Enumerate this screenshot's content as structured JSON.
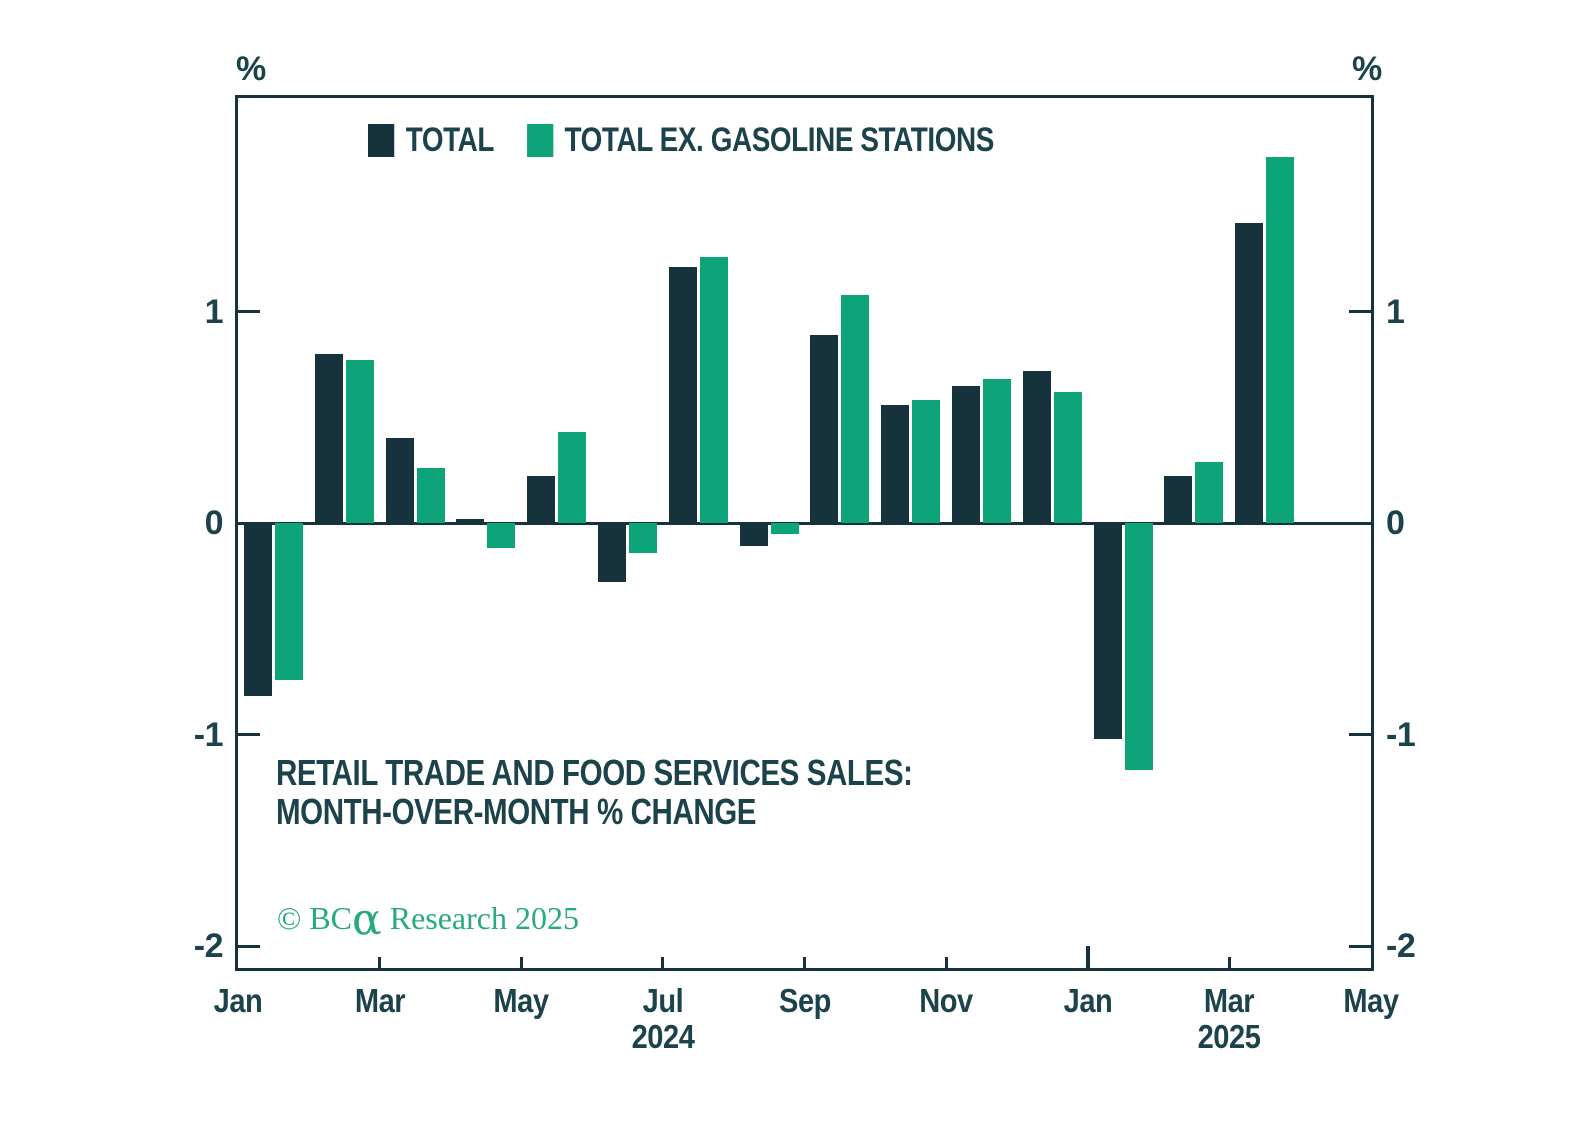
{
  "theme": {
    "background": "#FFFFFF",
    "text_color": "#1C434B",
    "axis_color": "#16323C",
    "copyright_color": "#29AA7C"
  },
  "chart_data": {
    "type": "bar",
    "title": "RETAIL TRADE AND FOOD SERVICES SALES: MONTH-OVER-MONTH % CHANGE",
    "title_lines": [
      "RETAIL TRADE AND FOOD SERVICES SALES:",
      "MONTH-OVER-MONTH % CHANGE"
    ],
    "unit_left": "%",
    "unit_right": "%",
    "grid": false,
    "legend_position": "top",
    "categories": [
      "Jan 2024",
      "Feb 2024",
      "Mar 2024",
      "Apr 2024",
      "May 2024",
      "Jun 2024",
      "Jul 2024",
      "Aug 2024",
      "Sep 2024",
      "Oct 2024",
      "Nov 2024",
      "Dec 2024",
      "Jan 2025",
      "Feb 2025",
      "Mar 2025"
    ],
    "series": [
      {
        "name": "TOTAL",
        "color": "#16323C",
        "values": [
          -0.82,
          0.8,
          0.4,
          0.02,
          0.22,
          -0.28,
          1.21,
          -0.11,
          0.89,
          0.56,
          0.65,
          0.72,
          -1.02,
          0.22,
          1.42
        ]
      },
      {
        "name": "TOTAL EX. GASOLINE STATIONS",
        "color": "#0DA47A",
        "values": [
          -0.74,
          0.77,
          0.26,
          -0.12,
          0.43,
          -0.14,
          1.26,
          -0.05,
          1.08,
          0.58,
          0.68,
          0.62,
          -1.17,
          0.29,
          1.73
        ]
      }
    ],
    "ylim": [
      -2.1,
      2.01
    ],
    "y_ticks": [
      1,
      0,
      -1,
      -2
    ],
    "x_axis": {
      "months_shown": 17,
      "ticks": [
        {
          "label": "Jan",
          "index": 0,
          "tick": "none"
        },
        {
          "label": "Mar",
          "index": 2,
          "tick": "short"
        },
        {
          "label": "May",
          "index": 4,
          "tick": "short"
        },
        {
          "label": "Jul",
          "index": 6,
          "tick": "short",
          "year": "2024"
        },
        {
          "label": "Sep",
          "index": 8,
          "tick": "short"
        },
        {
          "label": "Nov",
          "index": 10,
          "tick": "short"
        },
        {
          "label": "Jan",
          "index": 12,
          "tick": "long"
        },
        {
          "label": "Mar",
          "index": 14,
          "tick": "short",
          "year": "2025"
        },
        {
          "label": "May",
          "index": 16,
          "tick": "none"
        }
      ]
    }
  },
  "footer": {
    "copyright_prefix": "© BC",
    "copyright_alpha": "α",
    "copyright_suffix": " Research 2025"
  }
}
